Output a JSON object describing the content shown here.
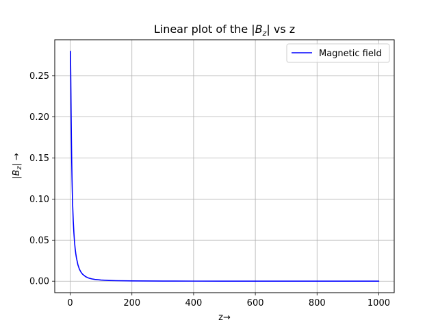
{
  "chart_data": {
    "type": "line",
    "title": "Linear plot of the |B⃗z| vs z",
    "title_parts": {
      "prefix": "Linear plot of the |",
      "symbol": "B",
      "subscript": "z",
      "suffix": "| vs z"
    },
    "xlabel": "z→",
    "ylabel": "|B⃗z| →",
    "ylabel_parts": {
      "prefix": "|",
      "symbol": "B",
      "subscript": "z",
      "suffix": "| →"
    },
    "xlim": [
      -50,
      1050
    ],
    "ylim": [
      -0.014,
      0.294
    ],
    "x_ticks": [
      0,
      200,
      400,
      600,
      800,
      1000
    ],
    "x_tick_labels": [
      "0",
      "200",
      "400",
      "600",
      "800",
      "1000"
    ],
    "y_ticks": [
      0.0,
      0.05,
      0.1,
      0.15,
      0.2,
      0.25
    ],
    "y_tick_labels": [
      "0.00",
      "0.05",
      "0.10",
      "0.15",
      "0.20",
      "0.25"
    ],
    "grid": true,
    "legend_position": "top-right",
    "series": [
      {
        "name": "Magnetic field",
        "color": "#0000ff",
        "x": [
          1,
          2,
          3,
          4,
          5,
          6,
          7,
          8,
          10,
          12,
          14,
          16,
          18,
          20,
          25,
          30,
          35,
          40,
          50,
          60,
          70,
          80,
          100,
          125,
          150,
          200,
          250,
          300,
          400,
          500,
          600,
          700,
          800,
          900,
          1000
        ],
        "values": [
          0.28,
          0.245,
          0.205,
          0.172,
          0.145,
          0.124,
          0.107,
          0.093,
          0.073,
          0.059,
          0.048,
          0.04,
          0.034,
          0.029,
          0.02,
          0.0145,
          0.011,
          0.0085,
          0.0055,
          0.0038,
          0.0028,
          0.0021,
          0.0014,
          0.0009,
          0.0006,
          0.00035,
          0.00022,
          0.00015,
          9e-05,
          6e-05,
          4e-05,
          3e-05,
          2e-05,
          1.5e-05,
          1e-05
        ]
      }
    ]
  }
}
